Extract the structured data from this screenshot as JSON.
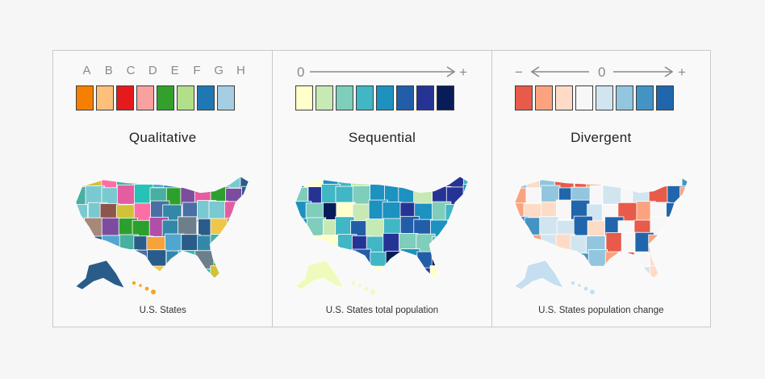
{
  "panels": [
    {
      "id": "qualitative",
      "title": "Qualitative",
      "caption": "U.S. States",
      "scale_labels": [
        "A",
        "B",
        "C",
        "D",
        "E",
        "F",
        "G",
        "H"
      ],
      "swatches": [
        "#f77f00",
        "#fcc07a",
        "#e41a1c",
        "#f8a19f",
        "#33a02c",
        "#b2df8a",
        "#1f78b4",
        "#a6cee3"
      ],
      "map_palette": [
        "#3388a9",
        "#a6897a",
        "#d2c236",
        "#e45da0",
        "#27c2b6",
        "#6e7f8c",
        "#b14ea7",
        "#2a5c8a",
        "#7ac9d1",
        "#34b57c",
        "#f6a33c",
        "#c9c9c9",
        "#fd6ea4",
        "#2ca02c",
        "#51a6cf",
        "#4a6fa5",
        "#8c564b",
        "#f0c64a",
        "#47b0a0",
        "#7c4d9f"
      ],
      "island_color": "#f7a51c"
    },
    {
      "id": "sequential",
      "title": "Sequential",
      "caption": "U.S. States total population",
      "scale_start": "0",
      "scale_end": "+",
      "swatches": [
        "#ffffcc",
        "#c7e9b4",
        "#7fcdbb",
        "#41b6c4",
        "#1d91c0",
        "#225ea8",
        "#253494",
        "#081d58"
      ],
      "map_palette": [
        "#ffffcc",
        "#c7e9b4",
        "#7fcdbb",
        "#41b6c4",
        "#1d91c0",
        "#225ea8",
        "#253494",
        "#081d58"
      ],
      "island_color": "#eefbbd"
    },
    {
      "id": "divergent",
      "title": "Divergent",
      "caption": "U.S. States population change",
      "scale_left": "−",
      "scale_mid": "0",
      "scale_right": "+",
      "swatches": [
        "#e85a4a",
        "#fba37f",
        "#fddbc7",
        "#f7f7f7",
        "#d1e5f0",
        "#92c5de",
        "#4393c3",
        "#2166ac"
      ],
      "map_palette": [
        "#fddbc7",
        "#f7f7f7",
        "#d1e5f0",
        "#92c5de",
        "#4393c3",
        "#2166ac",
        "#fba37f",
        "#e85a4a"
      ],
      "island_color": "#c6dff0"
    }
  ]
}
